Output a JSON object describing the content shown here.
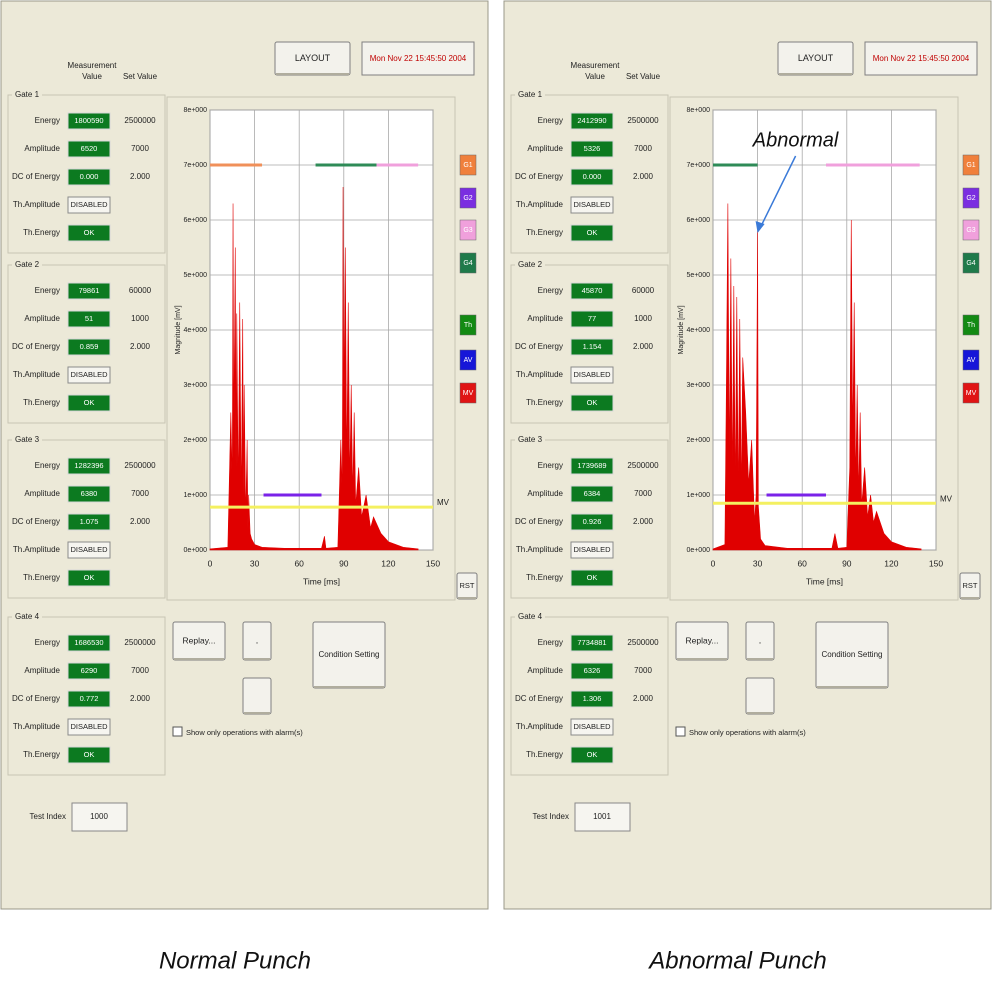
{
  "panels": [
    {
      "caption": "Normal Punch",
      "layout_button": "LAYOUT",
      "timestamp": "Mon Nov 22 15:45:50 2004",
      "headers": {
        "measurement": "Measurement Value",
        "set": "Set Value"
      },
      "gates": [
        {
          "title": "Gate 1",
          "rows": [
            {
              "label": "Energy",
              "value": "1800590",
              "set": "2500000"
            },
            {
              "label": "Amplitude",
              "value": "6520",
              "set": "7000"
            },
            {
              "label": "DC of Energy",
              "value": "0.000",
              "set": "2.000"
            },
            {
              "label": "Th.Amplitude",
              "value": "DISABLED"
            },
            {
              "label": "Th.Energy",
              "value": "OK"
            }
          ]
        },
        {
          "title": "Gate 2",
          "rows": [
            {
              "label": "Energy",
              "value": "79861",
              "set": "60000"
            },
            {
              "label": "Amplitude",
              "value": "51",
              "set": "1000"
            },
            {
              "label": "DC of Energy",
              "value": "0.859",
              "set": "2.000"
            },
            {
              "label": "Th.Amplitude",
              "value": "DISABLED"
            },
            {
              "label": "Th.Energy",
              "value": "OK"
            }
          ]
        },
        {
          "title": "Gate 3",
          "rows": [
            {
              "label": "Energy",
              "value": "1282396",
              "set": "2500000"
            },
            {
              "label": "Amplitude",
              "value": "6380",
              "set": "7000"
            },
            {
              "label": "DC of Energy",
              "value": "1.075",
              "set": "2.000"
            },
            {
              "label": "Th.Amplitude",
              "value": "DISABLED"
            },
            {
              "label": "Th.Energy",
              "value": "OK"
            }
          ]
        },
        {
          "title": "Gate 4",
          "rows": [
            {
              "label": "Energy",
              "value": "1686530",
              "set": "2500000"
            },
            {
              "label": "Amplitude",
              "value": "6290",
              "set": "7000"
            },
            {
              "label": "DC of Energy",
              "value": "0.772",
              "set": "2.000"
            },
            {
              "label": "Th.Amplitude",
              "value": "DISABLED"
            },
            {
              "label": "Th.Energy",
              "value": "OK"
            }
          ]
        }
      ],
      "chart": {
        "xlim": [
          0,
          150
        ],
        "ylim": [
          0,
          8
        ],
        "xticks": [
          0,
          30,
          60,
          90,
          120,
          150
        ],
        "yticks": [
          {
            "value": 0,
            "label": "0e+000"
          },
          {
            "value": 1,
            "label": "1e+000"
          },
          {
            "value": 2,
            "label": "2e+000"
          },
          {
            "value": 3,
            "label": "3e+000"
          },
          {
            "value": 4,
            "label": "4e+000"
          },
          {
            "value": 5,
            "label": "5e+000"
          },
          {
            "value": 6,
            "label": "6e+000"
          },
          {
            "value": 7,
            "label": "7e+000"
          },
          {
            "value": 8,
            "label": "8e+000"
          }
        ],
        "x_label": "Time [ms]",
        "y_label": "Magnitude [mV]",
        "grid": true,
        "mv_label": "MV",
        "rst": "RST",
        "legend": [
          {
            "label": "G1",
            "color": "#f0803c"
          },
          {
            "label": "G2",
            "color": "#7a2ee0"
          },
          {
            "label": "G3",
            "color": "#f0a0dc"
          },
          {
            "label": "G4",
            "color": "#1f7a4a"
          },
          {
            "label": "Th",
            "color": "#138a13"
          },
          {
            "label": "AV",
            "color": "#1616d8"
          },
          {
            "label": "MV",
            "color": "#e01414"
          }
        ],
        "levels": [
          {
            "color": "#f0905a",
            "y": 7,
            "x": [
              0,
              35
            ]
          },
          {
            "color": "#2e8b57",
            "y": 7,
            "x": [
              71,
              112
            ]
          },
          {
            "color": "#f0a0dc",
            "y": 7,
            "x": [
              112,
              140
            ]
          },
          {
            "color": "#7a22e8",
            "y": 1,
            "x": [
              36,
              75
            ]
          },
          {
            "color": "#f4f060",
            "y": 0.78,
            "x": [
              0,
              150
            ]
          }
        ],
        "signal": {
          "color": "#e00000",
          "x": [
            0,
            12,
            14,
            15,
            15.5,
            16,
            17,
            17.5,
            18,
            19,
            20,
            21,
            22,
            22.5,
            23,
            24,
            25,
            25.5,
            26,
            27,
            28,
            30,
            35,
            50,
            75,
            77,
            78,
            86,
            88,
            89,
            89.5,
            90,
            91,
            92,
            93,
            94,
            95,
            96,
            97,
            98,
            100,
            102,
            105,
            108,
            110,
            115,
            120,
            130,
            140
          ],
          "y": [
            0.02,
            0.05,
            2.5,
            1.2,
            6.3,
            2.0,
            5.5,
            1.5,
            4.3,
            1.0,
            4.5,
            0.8,
            4.2,
            1.0,
            3.0,
            0.6,
            2.0,
            0.4,
            1.0,
            0.3,
            0.2,
            0.1,
            0.05,
            0.03,
            0.03,
            0.25,
            0.03,
            0.05,
            2.0,
            1.0,
            6.6,
            2.5,
            5.5,
            1.5,
            4.5,
            1.2,
            3.0,
            1.0,
            2.5,
            0.8,
            1.5,
            0.6,
            1.0,
            0.4,
            0.6,
            0.3,
            0.15,
            0.05,
            0.02
          ]
        }
      },
      "buttons": {
        "replay": "Replay...",
        "dot": ".",
        "condition": "Condition Setting"
      },
      "checkbox": "Show only operations with alarm(s)",
      "test_index": {
        "label": "Test Index",
        "value": "1000"
      }
    },
    {
      "caption": "Abnormal Punch",
      "layout_button": "LAYOUT",
      "timestamp": "Mon Nov 22 15:45:50 2004",
      "headers": {
        "measurement": "Measurement Value",
        "set": "Set Value"
      },
      "gates": [
        {
          "title": "Gate 1",
          "rows": [
            {
              "label": "Energy",
              "value": "2412990",
              "set": "2500000"
            },
            {
              "label": "Amplitude",
              "value": "5326",
              "set": "7000"
            },
            {
              "label": "DC of Energy",
              "value": "0.000",
              "set": "2.000"
            },
            {
              "label": "Th.Amplitude",
              "value": "DISABLED"
            },
            {
              "label": "Th.Energy",
              "value": "OK"
            }
          ]
        },
        {
          "title": "Gate 2",
          "rows": [
            {
              "label": "Energy",
              "value": "45870",
              "set": "60000"
            },
            {
              "label": "Amplitude",
              "value": "77",
              "set": "1000"
            },
            {
              "label": "DC of Energy",
              "value": "1.154",
              "set": "2.000"
            },
            {
              "label": "Th.Amplitude",
              "value": "DISABLED"
            },
            {
              "label": "Th.Energy",
              "value": "OK"
            }
          ]
        },
        {
          "title": "Gate 3",
          "rows": [
            {
              "label": "Energy",
              "value": "1739689",
              "set": "2500000"
            },
            {
              "label": "Amplitude",
              "value": "6384",
              "set": "7000"
            },
            {
              "label": "DC of Energy",
              "value": "0.926",
              "set": "2.000"
            },
            {
              "label": "Th.Amplitude",
              "value": "DISABLED"
            },
            {
              "label": "Th.Energy",
              "value": "OK"
            }
          ]
        },
        {
          "title": "Gate 4",
          "rows": [
            {
              "label": "Energy",
              "value": "7734881",
              "set": "2500000"
            },
            {
              "label": "Amplitude",
              "value": "6326",
              "set": "7000"
            },
            {
              "label": "DC of Energy",
              "value": "1.306",
              "set": "2.000"
            },
            {
              "label": "Th.Amplitude",
              "value": "DISABLED"
            },
            {
              "label": "Th.Energy",
              "value": "OK"
            }
          ]
        }
      ],
      "chart": {
        "xlim": [
          0,
          150
        ],
        "ylim": [
          0,
          8
        ],
        "xticks": [
          0,
          30,
          60,
          90,
          120,
          150
        ],
        "yticks": [
          {
            "value": 0,
            "label": "0e+000"
          },
          {
            "value": 1,
            "label": "1e+000"
          },
          {
            "value": 2,
            "label": "2e+000"
          },
          {
            "value": 3,
            "label": "3e+000"
          },
          {
            "value": 4,
            "label": "4e+000"
          },
          {
            "value": 5,
            "label": "5e+000"
          },
          {
            "value": 6,
            "label": "6e+000"
          },
          {
            "value": 7,
            "label": "7e+000"
          },
          {
            "value": 8,
            "label": "8e+000"
          }
        ],
        "x_label": "Time [ms]",
        "y_label": "Magnitude [mV]",
        "grid": true,
        "mv_label": "MV",
        "rst": "RST",
        "legend": [
          {
            "label": "G1",
            "color": "#f0803c"
          },
          {
            "label": "G2",
            "color": "#7a2ee0"
          },
          {
            "label": "G3",
            "color": "#f0a0dc"
          },
          {
            "label": "G4",
            "color": "#1f7a4a"
          },
          {
            "label": "Th",
            "color": "#138a13"
          },
          {
            "label": "AV",
            "color": "#1616d8"
          },
          {
            "label": "MV",
            "color": "#e01414"
          }
        ],
        "levels": [
          {
            "color": "#2e8b57",
            "y": 7,
            "x": [
              0,
              30
            ]
          },
          {
            "color": "#f0a0dc",
            "y": 7,
            "x": [
              76,
              139
            ]
          },
          {
            "color": "#7a22e8",
            "y": 1,
            "x": [
              36,
              76
            ]
          },
          {
            "color": "#f4f060",
            "y": 0.85,
            "x": [
              0,
              150
            ]
          }
        ],
        "annotation": {
          "text": "Abnormal",
          "x": 30,
          "y": 5.8
        },
        "signal": {
          "color": "#e00000",
          "x": [
            0,
            8,
            9,
            10,
            11,
            12,
            13,
            14,
            15,
            16,
            17,
            18,
            19,
            20,
            22,
            24,
            26,
            28,
            29,
            30,
            30.5,
            32,
            35,
            50,
            80,
            82,
            84,
            90,
            92,
            93,
            94,
            95,
            96,
            97,
            98,
            99,
            100,
            102,
            104,
            106,
            108,
            110,
            115,
            120,
            130,
            140
          ],
          "y": [
            0.02,
            0.1,
            3.0,
            6.3,
            1.5,
            5.3,
            1.2,
            4.8,
            1.0,
            4.6,
            0.9,
            4.2,
            1.0,
            3.5,
            2.5,
            1.2,
            2.0,
            0.5,
            1.0,
            5.8,
            0.8,
            0.2,
            0.08,
            0.03,
            0.03,
            0.3,
            0.03,
            0.05,
            1.5,
            6.0,
            2.0,
            4.5,
            1.2,
            3.0,
            1.0,
            2.5,
            0.8,
            1.5,
            0.6,
            1.0,
            0.5,
            0.7,
            0.3,
            0.15,
            0.05,
            0.02
          ]
        }
      },
      "buttons": {
        "replay": "Replay...",
        "dot": ".",
        "condition": "Condition Setting"
      },
      "checkbox": "Show only operations with alarm(s)",
      "test_index": {
        "label": "Test Index",
        "value": "1001"
      }
    }
  ]
}
